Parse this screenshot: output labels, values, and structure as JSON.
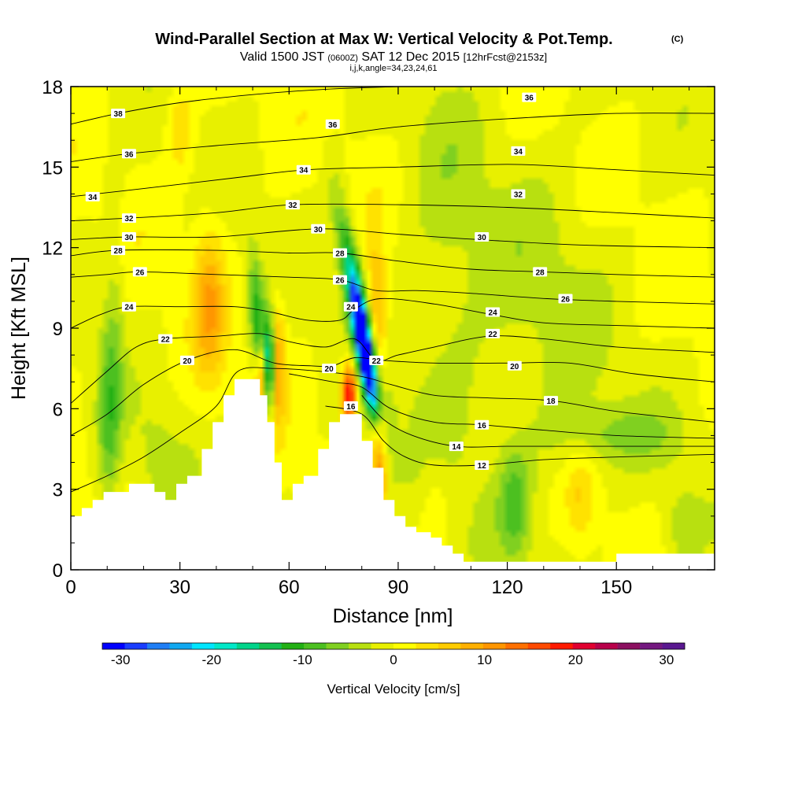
{
  "chart_data": {
    "type": "heatmap",
    "title": {
      "main": "Wind-Parallel Section at Max W: Vertical Velocity & Pot.Temp.",
      "mark": "(C)",
      "valid_a": "Valid 1500 JST",
      "valid_b": "(0600Z)",
      "valid_c": "SAT 12 Dec 2015",
      "valid_d": "[12hrFcst@2153z]",
      "indices": "i,j,k,angle=34,23,24,61"
    },
    "xlabel": "Distance [nm]",
    "ylabel": "Height [Kft MSL]",
    "xlim": [
      0,
      177
    ],
    "ylim": [
      0,
      18
    ],
    "x_ticks": [
      "0",
      "30",
      "60",
      "90",
      "120",
      "150"
    ],
    "y_ticks": [
      "0",
      "3",
      "6",
      "9",
      "12",
      "15",
      "18"
    ],
    "colorbar": {
      "label": "Vertical Velocity [cm/s]",
      "range": [
        -32,
        32
      ],
      "ticks": [
        "-30",
        "-20",
        "-10",
        "0",
        "10",
        "20",
        "30"
      ],
      "colors": [
        "#0000ff",
        "#1a3dff",
        "#1f7ef5",
        "#11a8f0",
        "#00e5ff",
        "#00e8c8",
        "#00d48a",
        "#14c050",
        "#22b014",
        "#4cc020",
        "#80d020",
        "#b8e010",
        "#e8f000",
        "#ffff00",
        "#ffe200",
        "#ffcc00",
        "#ffb000",
        "#ff9600",
        "#ff7000",
        "#ff4a00",
        "#ff1a00",
        "#e00030",
        "#b8004a",
        "#8c1060",
        "#741880",
        "#5a1890"
      ]
    },
    "terrain": [
      [
        0,
        2.0
      ],
      [
        3,
        2.0
      ],
      [
        3,
        2.3
      ],
      [
        6,
        2.3
      ],
      [
        6,
        2.6
      ],
      [
        9,
        2.6
      ],
      [
        9,
        2.9
      ],
      [
        16,
        2.9
      ],
      [
        16,
        3.2
      ],
      [
        23,
        3.2
      ],
      [
        23,
        2.9
      ],
      [
        26,
        2.9
      ],
      [
        26,
        2.6
      ],
      [
        29,
        2.6
      ],
      [
        29,
        3.2
      ],
      [
        32,
        3.2
      ],
      [
        32,
        3.5
      ],
      [
        36,
        3.5
      ],
      [
        36,
        4.5
      ],
      [
        39,
        4.5
      ],
      [
        39,
        5.5
      ],
      [
        42,
        5.5
      ],
      [
        42,
        6.5
      ],
      [
        45,
        6.5
      ],
      [
        45,
        7.1
      ],
      [
        52,
        7.1
      ],
      [
        52,
        6.5
      ],
      [
        54,
        6.5
      ],
      [
        54,
        5.5
      ],
      [
        56,
        5.5
      ],
      [
        56,
        4.0
      ],
      [
        58,
        4.0
      ],
      [
        58,
        2.6
      ],
      [
        61,
        2.6
      ],
      [
        61,
        3.2
      ],
      [
        64,
        3.2
      ],
      [
        64,
        3.5
      ],
      [
        68,
        3.5
      ],
      [
        68,
        4.5
      ],
      [
        71,
        4.5
      ],
      [
        71,
        5.5
      ],
      [
        74,
        5.5
      ],
      [
        74,
        5.8
      ],
      [
        80,
        5.8
      ],
      [
        80,
        4.8
      ],
      [
        83,
        4.8
      ],
      [
        83,
        3.8
      ],
      [
        86,
        3.8
      ],
      [
        86,
        2.6
      ],
      [
        89,
        2.6
      ],
      [
        89,
        2.0
      ],
      [
        92,
        2.0
      ],
      [
        92,
        1.6
      ],
      [
        95,
        1.6
      ],
      [
        95,
        1.4
      ],
      [
        99,
        1.4
      ],
      [
        99,
        1.2
      ],
      [
        102,
        1.2
      ],
      [
        102,
        0.9
      ],
      [
        105,
        0.9
      ],
      [
        105,
        0.6
      ],
      [
        108,
        0.6
      ],
      [
        108,
        0.3
      ],
      [
        150,
        0.3
      ],
      [
        150,
        0.6
      ],
      [
        177,
        0.6
      ]
    ],
    "w_features": [
      {
        "x": 80.5,
        "y": 8.4,
        "sx": 1.3,
        "sy": 1.8,
        "tilt": -0.45,
        "value": -30
      },
      {
        "x": 78.5,
        "y": 9.8,
        "sx": 2.2,
        "sy": 2.8,
        "tilt": -0.45,
        "value": -14
      },
      {
        "x": 84.5,
        "y": 6.6,
        "sx": 2.2,
        "sy": 1.6,
        "tilt": -0.4,
        "value": -10
      },
      {
        "x": 76.5,
        "y": 6.5,
        "sx": 1.4,
        "sy": 0.9,
        "tilt": 0.0,
        "value": 22
      },
      {
        "x": 85.0,
        "y": 4.6,
        "sx": 1.6,
        "sy": 1.8,
        "tilt": 0.0,
        "value": 14
      },
      {
        "x": 84.0,
        "y": 9.2,
        "sx": 1.8,
        "sy": 2.0,
        "tilt": 0.0,
        "value": 10
      },
      {
        "x": 54.5,
        "y": 7.6,
        "sx": 0.8,
        "sy": 1.2,
        "tilt": 0.0,
        "value": -24
      },
      {
        "x": 51.5,
        "y": 9.0,
        "sx": 1.5,
        "sy": 1.8,
        "tilt": -0.2,
        "value": -12
      },
      {
        "x": 52.5,
        "y": 7.2,
        "sx": 1.3,
        "sy": 0.9,
        "tilt": 0.0,
        "value": 13
      },
      {
        "x": 57.0,
        "y": 7.8,
        "sx": 1.4,
        "sy": 1.6,
        "tilt": 0.0,
        "value": 9
      },
      {
        "x": 38.0,
        "y": 10.0,
        "sx": 3.0,
        "sy": 2.0,
        "tilt": 0.0,
        "value": 9
      },
      {
        "x": 10.0,
        "y": 5.5,
        "sx": 2.0,
        "sy": 2.5,
        "tilt": 0.0,
        "value": -6
      },
      {
        "x": 12.0,
        "y": 8.5,
        "sx": 2.0,
        "sy": 4.0,
        "tilt": 0.0,
        "value": -4
      },
      {
        "x": 24.0,
        "y": 4.0,
        "sx": 5.0,
        "sy": 1.5,
        "tilt": 0.0,
        "value": -3
      },
      {
        "x": 122.0,
        "y": 2.5,
        "sx": 3.0,
        "sy": 1.4,
        "tilt": 0.0,
        "value": -7
      },
      {
        "x": 150.0,
        "y": 5.0,
        "sx": 12.0,
        "sy": 0.8,
        "tilt": 0.0,
        "value": -5
      },
      {
        "x": 128.0,
        "y": 9.0,
        "sx": 15.0,
        "sy": 5.0,
        "tilt": 0.0,
        "value": -3
      },
      {
        "x": 103.0,
        "y": 11.0,
        "sx": 8.0,
        "sy": 6.0,
        "tilt": 0.0,
        "value": -3
      },
      {
        "x": 140.0,
        "y": 2.7,
        "sx": 2.5,
        "sy": 1.3,
        "tilt": 0.0,
        "value": 4
      },
      {
        "x": 168.0,
        "y": 1.5,
        "sx": 4.0,
        "sy": 1.2,
        "tilt": 0.0,
        "value": -4
      },
      {
        "x": 100.0,
        "y": 2.5,
        "sx": 3.0,
        "sy": 1.5,
        "tilt": 0.0,
        "value": 3
      },
      {
        "x": 30.0,
        "y": 16.5,
        "sx": 2.5,
        "sy": 1.2,
        "tilt": 0.0,
        "value": 5
      }
    ],
    "theta_contours": [
      {
        "value": 12,
        "label": "12",
        "lx": 113,
        "ly": 3.9,
        "pts": [
          [
            70,
            6.1
          ],
          [
            80,
            5.8
          ],
          [
            86,
            4.8
          ],
          [
            92,
            4.2
          ],
          [
            100,
            3.9
          ],
          [
            113,
            3.9
          ],
          [
            130,
            4.1
          ],
          [
            150,
            4.2
          ],
          [
            177,
            4.3
          ]
        ]
      },
      {
        "value": 14,
        "label": "14",
        "lx": 106,
        "ly": 4.6,
        "pts": [
          [
            80,
            6.5
          ],
          [
            86,
            5.6
          ],
          [
            94,
            5.0
          ],
          [
            106,
            4.6
          ],
          [
            120,
            4.6
          ],
          [
            140,
            4.6
          ],
          [
            160,
            4.6
          ],
          [
            177,
            4.6
          ]
        ]
      },
      {
        "value": 16,
        "label": "16",
        "lx": 113,
        "ly": 5.4,
        "pts": [
          [
            60,
            7.3
          ],
          [
            72,
            7.0
          ],
          [
            80,
            6.8
          ],
          [
            88,
            6.0
          ],
          [
            100,
            5.5
          ],
          [
            113,
            5.4
          ],
          [
            130,
            5.2
          ],
          [
            150,
            5.0
          ],
          [
            177,
            4.9
          ]
        ]
      },
      {
        "value": 18,
        "label": "18",
        "lx": 132,
        "ly": 6.3,
        "pts": [
          [
            0,
            2.9
          ],
          [
            10,
            3.5
          ],
          [
            20,
            4.2
          ],
          [
            30,
            5.1
          ],
          [
            40,
            6.1
          ],
          [
            46,
            7.4
          ],
          [
            56,
            7.5
          ],
          [
            68,
            7.4
          ],
          [
            80,
            7.2
          ],
          [
            88,
            6.9
          ],
          [
            100,
            6.5
          ],
          [
            115,
            6.4
          ],
          [
            132,
            6.3
          ],
          [
            150,
            5.9
          ],
          [
            170,
            5.6
          ],
          [
            177,
            5.5
          ]
        ]
      },
      {
        "value": 20,
        "label": "20",
        "lx": 32,
        "ly": 7.8,
        "pts": [
          [
            0,
            5.0
          ],
          [
            10,
            5.8
          ],
          [
            20,
            6.9
          ],
          [
            32,
            7.8
          ],
          [
            45,
            8.2
          ],
          [
            56,
            7.7
          ],
          [
            66,
            7.6
          ],
          [
            72,
            7.6
          ],
          [
            78,
            7.9
          ],
          [
            86,
            7.8
          ],
          [
            100,
            7.7
          ],
          [
            120,
            7.7
          ],
          [
            137,
            7.7
          ],
          [
            155,
            7.3
          ],
          [
            177,
            7.0
          ]
        ]
      },
      {
        "value": 22,
        "label": "22",
        "lx": 26,
        "ly": 8.6,
        "pts": [
          [
            0,
            6.2
          ],
          [
            10,
            7.4
          ],
          [
            18,
            8.3
          ],
          [
            26,
            8.6
          ],
          [
            40,
            8.7
          ],
          [
            52,
            8.8
          ],
          [
            60,
            8.5
          ],
          [
            70,
            8.3
          ],
          [
            78,
            8.6
          ],
          [
            84,
            7.8
          ],
          [
            90,
            8.0
          ],
          [
            100,
            8.3
          ],
          [
            115,
            8.7
          ],
          [
            130,
            8.6
          ],
          [
            150,
            8.3
          ],
          [
            177,
            8.1
          ]
        ]
      },
      {
        "value": 24,
        "label": "24",
        "lx": 16,
        "ly": 9.8,
        "pts": [
          [
            0,
            9.0
          ],
          [
            8,
            9.5
          ],
          [
            16,
            9.8
          ],
          [
            30,
            9.8
          ],
          [
            45,
            9.8
          ],
          [
            55,
            9.6
          ],
          [
            65,
            9.3
          ],
          [
            74,
            9.3
          ],
          [
            78,
            9.7
          ],
          [
            85,
            10.1
          ],
          [
            100,
            9.9
          ],
          [
            116,
            9.5
          ],
          [
            130,
            9.2
          ],
          [
            150,
            9.1
          ],
          [
            177,
            9.0
          ]
        ]
      },
      {
        "value": 26,
        "label": "26",
        "lx": 19,
        "ly": 11.1,
        "pts": [
          [
            0,
            10.9
          ],
          [
            10,
            11.0
          ],
          [
            19,
            11.1
          ],
          [
            40,
            11.0
          ],
          [
            60,
            10.9
          ],
          [
            74,
            10.8
          ],
          [
            84,
            10.4
          ],
          [
            95,
            10.4
          ],
          [
            110,
            10.3
          ],
          [
            131,
            10.1
          ],
          [
            150,
            10.0
          ],
          [
            177,
            9.9
          ]
        ]
      },
      {
        "value": 28,
        "label": "28",
        "lx": 13,
        "ly": 11.9,
        "pts": [
          [
            0,
            11.7
          ],
          [
            13,
            11.9
          ],
          [
            40,
            11.9
          ],
          [
            60,
            11.8
          ],
          [
            74,
            11.8
          ],
          [
            90,
            11.5
          ],
          [
            110,
            11.2
          ],
          [
            129,
            11.1
          ],
          [
            150,
            11.0
          ],
          [
            177,
            10.9
          ]
        ]
      },
      {
        "value": 30,
        "label": "30",
        "lx": 16,
        "ly": 12.4,
        "pts": [
          [
            0,
            12.3
          ],
          [
            16,
            12.4
          ],
          [
            40,
            12.4
          ],
          [
            68,
            12.7
          ],
          [
            90,
            12.5
          ],
          [
            112,
            12.3
          ],
          [
            140,
            12.1
          ],
          [
            177,
            12.0
          ]
        ]
      },
      {
        "value": 32,
        "label": "32",
        "lx": 16,
        "ly": 13.1,
        "pts": [
          [
            0,
            13.0
          ],
          [
            16,
            13.1
          ],
          [
            40,
            13.3
          ],
          [
            61,
            13.6
          ],
          [
            90,
            13.6
          ],
          [
            120,
            13.5
          ],
          [
            150,
            13.3
          ],
          [
            177,
            13.1
          ]
        ]
      },
      {
        "value": 34,
        "label": "34",
        "lx": 6,
        "ly": 13.9,
        "pts": [
          [
            0,
            13.9
          ],
          [
            20,
            14.2
          ],
          [
            45,
            14.6
          ],
          [
            65,
            14.9
          ],
          [
            90,
            15.0
          ],
          [
            122,
            15.1
          ],
          [
            150,
            14.9
          ],
          [
            177,
            14.7
          ]
        ]
      },
      {
        "value": 36,
        "label": "36",
        "lx": 16,
        "ly": 15.5,
        "pts": [
          [
            0,
            15.2
          ],
          [
            16,
            15.5
          ],
          [
            40,
            15.8
          ],
          [
            68,
            16.1
          ],
          [
            90,
            16.5
          ],
          [
            120,
            16.8
          ],
          [
            150,
            17.0
          ],
          [
            177,
            17.0
          ]
        ]
      },
      {
        "value": 38,
        "label": "38",
        "lx": 13,
        "ly": 17.0,
        "pts": [
          [
            0,
            16.6
          ],
          [
            13,
            17.0
          ],
          [
            30,
            17.4
          ],
          [
            50,
            17.7
          ],
          [
            70,
            17.9
          ],
          [
            90,
            18.0
          ]
        ]
      }
    ],
    "extra_labels": [
      {
        "label": "36",
        "x": 72,
        "y": 16.6
      },
      {
        "label": "36",
        "x": 126,
        "y": 17.6
      },
      {
        "label": "34",
        "x": 64,
        "y": 14.9
      },
      {
        "label": "34",
        "x": 123,
        "y": 15.6
      },
      {
        "label": "32",
        "x": 123,
        "y": 14.0
      },
      {
        "label": "32",
        "x": 61,
        "y": 13.6
      },
      {
        "label": "30",
        "x": 68,
        "y": 12.7
      },
      {
        "label": "28",
        "x": 74,
        "y": 11.8
      },
      {
        "label": "26",
        "x": 74,
        "y": 10.8
      },
      {
        "label": "24",
        "x": 77,
        "y": 9.8
      },
      {
        "label": "22",
        "x": 84,
        "y": 7.8
      },
      {
        "label": "20",
        "x": 71,
        "y": 7.5
      },
      {
        "label": "16",
        "x": 77,
        "y": 6.1
      },
      {
        "label": "28",
        "x": 129,
        "y": 11.1
      },
      {
        "label": "26",
        "x": 136,
        "y": 10.1
      },
      {
        "label": "24",
        "x": 116,
        "y": 9.6
      },
      {
        "label": "22",
        "x": 116,
        "y": 8.8
      },
      {
        "label": "20",
        "x": 122,
        "y": 7.6
      },
      {
        "label": "30",
        "x": 113,
        "y": 12.4
      }
    ]
  }
}
